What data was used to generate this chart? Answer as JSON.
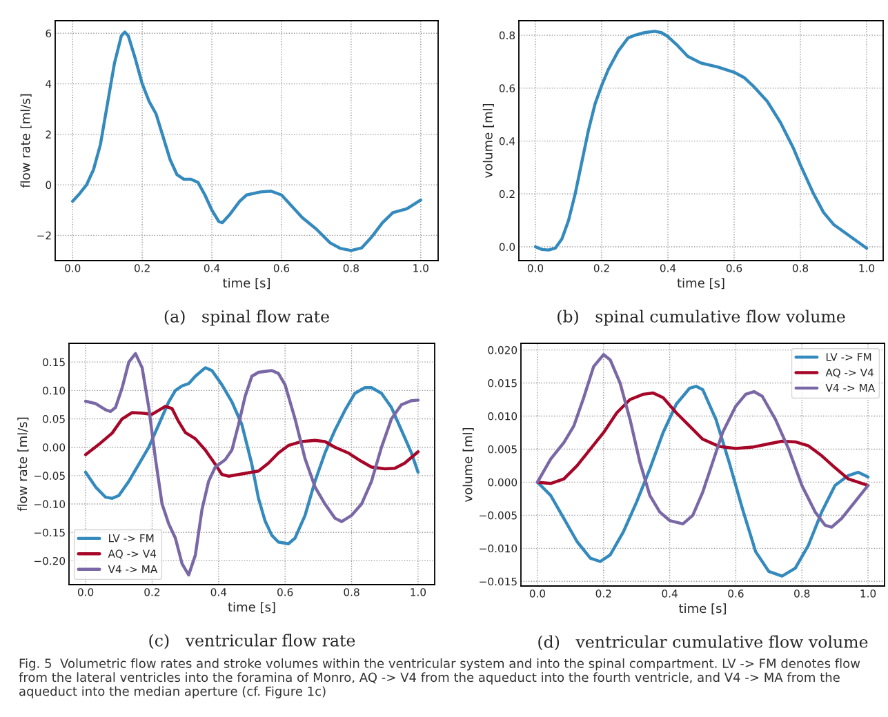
{
  "chart_data": [
    {
      "type": "line",
      "title": "(a)   spinal flow rate",
      "xlabel": "time [s]",
      "ylabel": "flow rate [ml/s]",
      "grid": true,
      "legend": false,
      "xlim": [
        -0.05,
        1.05
      ],
      "xticks": [
        {
          "value": 0,
          "label": "0.0"
        },
        {
          "value": 0.2,
          "label": "0.2"
        },
        {
          "value": 0.4,
          "label": "0.4"
        },
        {
          "value": 0.6,
          "label": "0.6"
        },
        {
          "value": 0.8,
          "label": "0.8"
        },
        {
          "value": 1,
          "label": "1.0"
        }
      ],
      "ylim": [
        -3.0,
        6.5
      ],
      "yticks": [
        {
          "value": -2,
          "label": "−2"
        },
        0,
        2,
        4,
        6
      ],
      "series": [
        {
          "color": "#348abd",
          "x": [
            0,
            0.02,
            0.04,
            0.06,
            0.08,
            0.1,
            0.12,
            0.14,
            0.15,
            0.16,
            0.18,
            0.2,
            0.22,
            0.24,
            0.26,
            0.28,
            0.3,
            0.32,
            0.34,
            0.36,
            0.38,
            0.4,
            0.42,
            0.43,
            0.45,
            0.48,
            0.5,
            0.54,
            0.57,
            0.6,
            0.63,
            0.66,
            0.7,
            0.74,
            0.77,
            0.8,
            0.83,
            0.86,
            0.89,
            0.92,
            0.96,
            1.0
          ],
          "values": [
            -0.65,
            -0.35,
            0.0,
            0.6,
            1.6,
            3.2,
            4.8,
            5.9,
            6.05,
            5.9,
            5.0,
            4.0,
            3.3,
            2.8,
            1.9,
            1.0,
            0.4,
            0.22,
            0.22,
            0.1,
            -0.4,
            -1.0,
            -1.45,
            -1.5,
            -1.2,
            -0.65,
            -0.4,
            -0.28,
            -0.25,
            -0.4,
            -0.85,
            -1.3,
            -1.75,
            -2.3,
            -2.52,
            -2.6,
            -2.5,
            -2.05,
            -1.5,
            -1.1,
            -0.95,
            -0.6
          ]
        }
      ]
    },
    {
      "type": "line",
      "title": "(b)   spinal cumulative flow volume",
      "xlabel": "time [s]",
      "ylabel": "volume [ml]",
      "grid": true,
      "legend": false,
      "xlim": [
        -0.05,
        1.05
      ],
      "xticks": [
        {
          "value": 0,
          "label": "0.0"
        },
        {
          "value": 0.2,
          "label": "0.2"
        },
        {
          "value": 0.4,
          "label": "0.4"
        },
        {
          "value": 0.6,
          "label": "0.6"
        },
        {
          "value": 0.8,
          "label": "0.8"
        },
        {
          "value": 1,
          "label": "1.0"
        }
      ],
      "ylim": [
        -0.052,
        0.855
      ],
      "yticks": [
        {
          "value": 0,
          "label": "0.0"
        },
        0.2,
        0.4,
        0.6,
        0.8
      ],
      "series": [
        {
          "color": "#348abd",
          "x": [
            0,
            0.02,
            0.04,
            0.06,
            0.08,
            0.1,
            0.12,
            0.14,
            0.16,
            0.18,
            0.2,
            0.22,
            0.25,
            0.28,
            0.3,
            0.33,
            0.36,
            0.38,
            0.4,
            0.43,
            0.46,
            0.5,
            0.55,
            0.6,
            0.63,
            0.66,
            0.7,
            0.74,
            0.78,
            0.8,
            0.84,
            0.87,
            0.9,
            0.95,
            1.0
          ],
          "values": [
            0.0,
            -0.01,
            -0.012,
            -0.005,
            0.03,
            0.1,
            0.2,
            0.32,
            0.44,
            0.54,
            0.61,
            0.67,
            0.74,
            0.79,
            0.8,
            0.81,
            0.815,
            0.81,
            0.795,
            0.76,
            0.72,
            0.695,
            0.68,
            0.66,
            0.64,
            0.605,
            0.55,
            0.47,
            0.37,
            0.31,
            0.2,
            0.13,
            0.085,
            0.04,
            -0.005
          ]
        }
      ]
    },
    {
      "type": "line",
      "title": "(c)   ventricular flow rate",
      "xlabel": "time [s]",
      "ylabel": "flow rate [ml/s]",
      "grid": true,
      "legend": "bottom left",
      "xlim": [
        -0.05,
        1.05
      ],
      "xticks": [
        {
          "value": 0,
          "label": "0.0"
        },
        {
          "value": 0.2,
          "label": "0.2"
        },
        {
          "value": 0.4,
          "label": "0.4"
        },
        {
          "value": 0.6,
          "label": "0.6"
        },
        {
          "value": 0.8,
          "label": "0.8"
        },
        {
          "value": 1,
          "label": "1.0"
        }
      ],
      "ylim": [
        -0.242,
        0.183
      ],
      "yticks": [
        {
          "value": -0.2,
          "label": "−0.20"
        },
        {
          "value": -0.15,
          "label": "−0.15"
        },
        {
          "value": -0.1,
          "label": "−0.10"
        },
        {
          "value": -0.05,
          "label": "−0.05"
        },
        {
          "value": 0,
          "label": "0.00"
        },
        0.05,
        {
          "value": 0.1,
          "label": "0.10"
        },
        0.15
      ],
      "series": [
        {
          "name": "LV -> FM",
          "color": "#348abd",
          "x": [
            0,
            0.03,
            0.06,
            0.08,
            0.1,
            0.13,
            0.16,
            0.19,
            0.22,
            0.25,
            0.27,
            0.29,
            0.31,
            0.33,
            0.36,
            0.38,
            0.41,
            0.44,
            0.47,
            0.5,
            0.52,
            0.54,
            0.56,
            0.58,
            0.61,
            0.63,
            0.66,
            0.69,
            0.72,
            0.75,
            0.78,
            0.81,
            0.84,
            0.86,
            0.89,
            0.92,
            0.95,
            0.98,
            1.0
          ],
          "values": [
            -0.044,
            -0.07,
            -0.088,
            -0.09,
            -0.085,
            -0.06,
            -0.03,
            0.0,
            0.04,
            0.08,
            0.1,
            0.108,
            0.112,
            0.125,
            0.14,
            0.135,
            0.11,
            0.08,
            0.04,
            -0.03,
            -0.09,
            -0.13,
            -0.155,
            -0.167,
            -0.17,
            -0.16,
            -0.12,
            -0.06,
            -0.01,
            0.03,
            0.065,
            0.095,
            0.105,
            0.105,
            0.095,
            0.07,
            0.03,
            -0.01,
            -0.044
          ]
        },
        {
          "name": "AQ -> V4",
          "color": "#a60628",
          "x": [
            0,
            0.04,
            0.08,
            0.11,
            0.14,
            0.17,
            0.2,
            0.22,
            0.24,
            0.26,
            0.28,
            0.3,
            0.33,
            0.36,
            0.39,
            0.41,
            0.43,
            0.46,
            0.49,
            0.52,
            0.55,
            0.58,
            0.61,
            0.65,
            0.69,
            0.72,
            0.75,
            0.79,
            0.83,
            0.86,
            0.9,
            0.93,
            0.96,
            1.0
          ],
          "values": [
            -0.013,
            0.005,
            0.025,
            0.05,
            0.061,
            0.06,
            0.058,
            0.065,
            0.072,
            0.068,
            0.045,
            0.026,
            0.015,
            -0.005,
            -0.03,
            -0.048,
            -0.051,
            -0.048,
            -0.045,
            -0.042,
            -0.028,
            -0.01,
            0.003,
            0.01,
            0.012,
            0.01,
            0.0,
            -0.01,
            -0.025,
            -0.035,
            -0.038,
            -0.037,
            -0.028,
            -0.008
          ]
        },
        {
          "name": "V4 -> MA",
          "color": "#7a68a6",
          "x": [
            0,
            0.03,
            0.06,
            0.075,
            0.09,
            0.11,
            0.13,
            0.15,
            0.17,
            0.19,
            0.21,
            0.23,
            0.25,
            0.27,
            0.29,
            0.31,
            0.33,
            0.35,
            0.37,
            0.39,
            0.42,
            0.44,
            0.46,
            0.48,
            0.5,
            0.52,
            0.56,
            0.58,
            0.6,
            0.63,
            0.66,
            0.69,
            0.72,
            0.75,
            0.77,
            0.8,
            0.83,
            0.86,
            0.89,
            0.92,
            0.95,
            0.98,
            1.0
          ],
          "values": [
            0.081,
            0.077,
            0.066,
            0.063,
            0.07,
            0.105,
            0.15,
            0.165,
            0.14,
            0.07,
            -0.02,
            -0.1,
            -0.135,
            -0.16,
            -0.205,
            -0.225,
            -0.19,
            -0.11,
            -0.06,
            -0.035,
            -0.022,
            -0.005,
            0.04,
            0.09,
            0.125,
            0.132,
            0.135,
            0.13,
            0.11,
            0.05,
            -0.02,
            -0.07,
            -0.1,
            -0.125,
            -0.131,
            -0.12,
            -0.1,
            -0.06,
            0.0,
            0.05,
            0.075,
            0.082,
            0.083
          ]
        }
      ]
    },
    {
      "type": "line",
      "title": "(d)   ventricular cumulative flow volume",
      "xlabel": "time [s]",
      "ylabel": "volume [ml]",
      "grid": true,
      "legend": "top right",
      "xlim": [
        -0.05,
        1.05
      ],
      "xticks": [
        {
          "value": 0,
          "label": "0.0"
        },
        {
          "value": 0.2,
          "label": "0.2"
        },
        {
          "value": 0.4,
          "label": "0.4"
        },
        {
          "value": 0.6,
          "label": "0.6"
        },
        {
          "value": 0.8,
          "label": "0.8"
        },
        {
          "value": 1,
          "label": "1.0"
        }
      ],
      "ylim": [
        -0.0157,
        0.021
      ],
      "yticks": [
        {
          "value": -0.015,
          "label": "−0.015"
        },
        {
          "value": -0.01,
          "label": "−0.010"
        },
        {
          "value": -0.005,
          "label": "−0.005"
        },
        {
          "value": 0,
          "label": "0.000"
        },
        0.005,
        {
          "value": 0.01,
          "label": "0.010"
        },
        0.015,
        {
          "value": 0.02,
          "label": "0.020"
        }
      ],
      "annotations": [
        "Fig. 5  Volumetric flow rates and stroke volumes within the ventricular system and into the spinal compartment. LV -> FM denotes flow from the lateral ventricles into the foramina of Monro, AQ -> V4 from the aqueduct into the fourth ventricle, and V4 -> MA from the aqueduct into the median aperture (cf. Figure 1c)"
      ],
      "series": [
        {
          "name": "LV -> FM",
          "color": "#348abd",
          "x": [
            0,
            0.04,
            0.08,
            0.12,
            0.16,
            0.19,
            0.22,
            0.26,
            0.3,
            0.34,
            0.38,
            0.42,
            0.46,
            0.48,
            0.5,
            0.54,
            0.58,
            0.62,
            0.66,
            0.7,
            0.74,
            0.78,
            0.82,
            0.86,
            0.9,
            0.94,
            0.97,
            1.0
          ],
          "values": [
            0,
            -0.002,
            -0.0055,
            -0.009,
            -0.0115,
            -0.012,
            -0.011,
            -0.0075,
            -0.003,
            0.002,
            0.0075,
            0.0118,
            0.0142,
            0.0145,
            0.014,
            0.0095,
            0.003,
            -0.004,
            -0.0105,
            -0.0135,
            -0.0142,
            -0.013,
            -0.0095,
            -0.0045,
            -0.0005,
            0.001,
            0.0015,
            0.0008
          ]
        },
        {
          "name": "AQ -> V4",
          "color": "#a60628",
          "x": [
            0,
            0.04,
            0.08,
            0.12,
            0.16,
            0.2,
            0.24,
            0.28,
            0.32,
            0.35,
            0.38,
            0.42,
            0.46,
            0.5,
            0.55,
            0.6,
            0.65,
            0.7,
            0.74,
            0.78,
            0.82,
            0.86,
            0.9,
            0.94,
            1.0
          ],
          "values": [
            0,
            -0.0002,
            0.0005,
            0.0025,
            0.005,
            0.0075,
            0.0105,
            0.0125,
            0.0133,
            0.0135,
            0.0128,
            0.0105,
            0.0085,
            0.0065,
            0.0054,
            0.0051,
            0.0053,
            0.0058,
            0.0062,
            0.0061,
            0.0055,
            0.004,
            0.0022,
            0.0005,
            -0.0005
          ]
        },
        {
          "name": "V4 -> MA",
          "color": "#7a68a6",
          "x": [
            0,
            0.04,
            0.08,
            0.11,
            0.14,
            0.17,
            0.2,
            0.22,
            0.25,
            0.28,
            0.31,
            0.34,
            0.37,
            0.4,
            0.44,
            0.47,
            0.5,
            0.53,
            0.56,
            0.6,
            0.63,
            0.655,
            0.68,
            0.72,
            0.76,
            0.8,
            0.84,
            0.87,
            0.89,
            0.92,
            0.96,
            1.0
          ],
          "values": [
            0,
            0.0035,
            0.006,
            0.0085,
            0.0128,
            0.0175,
            0.0193,
            0.0185,
            0.015,
            0.0095,
            0.003,
            -0.002,
            -0.0045,
            -0.0058,
            -0.0063,
            -0.005,
            -0.0015,
            0.003,
            0.0075,
            0.0115,
            0.0133,
            0.0137,
            0.013,
            0.0095,
            0.005,
            -0.0005,
            -0.0045,
            -0.0065,
            -0.0068,
            -0.0055,
            -0.003,
            -0.0005
          ]
        }
      ]
    }
  ]
}
